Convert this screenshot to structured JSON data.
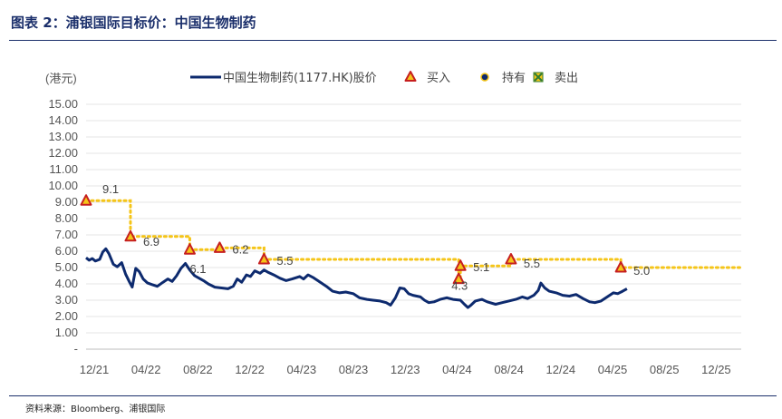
{
  "header": {
    "title": "图表 2：浦银国际目标价：中国生物制药",
    "source": "资料来源：Bloomberg、浦银国际"
  },
  "colors": {
    "price_line": "#0d2a6e",
    "target_line": "#f5c518",
    "buy_marker": "#c61f1f",
    "buy_marker_fill": "#f5c518",
    "hold_marker": "#0d2a6e",
    "sell_marker": "#2e7d32",
    "title": "#1b2f6b"
  },
  "chart_data": {
    "type": "line",
    "ylabel": "(港元)",
    "ylim": [
      0,
      15
    ],
    "y_ticks": [
      "-",
      "1.00",
      "2.00",
      "3.00",
      "4.00",
      "5.00",
      "6.00",
      "7.00",
      "8.00",
      "9.00",
      "10.00",
      "11.00",
      "12.00",
      "13.00",
      "14.00",
      "15.00"
    ],
    "x_ticks": [
      "12/21",
      "04/22",
      "08/22",
      "12/22",
      "04/23",
      "08/23",
      "12/23",
      "04/24",
      "08/24",
      "12/24",
      "04/25",
      "08/25",
      "12/25"
    ],
    "xlim": [
      "2021-12-01",
      "2025-12-31"
    ],
    "grid": true,
    "legend": {
      "position": "top",
      "entries": [
        {
          "label": "中国生物制药(1177.HK)股价",
          "icon": "line"
        },
        {
          "label": "买入",
          "icon": "triangle"
        },
        {
          "label": "持有",
          "icon": "circle"
        },
        {
          "label": "卖出",
          "icon": "x-square"
        }
      ]
    },
    "series": [
      {
        "name": "中国生物制药(1177.HK)股价",
        "points": [
          [
            "2021-12-01",
            5.6
          ],
          [
            "2021-12-08",
            5.45
          ],
          [
            "2021-12-15",
            5.55
          ],
          [
            "2021-12-22",
            5.4
          ],
          [
            "2022-01-01",
            5.5
          ],
          [
            "2022-01-08",
            5.95
          ],
          [
            "2022-01-15",
            6.15
          ],
          [
            "2022-01-22",
            5.85
          ],
          [
            "2022-02-01",
            5.2
          ],
          [
            "2022-02-10",
            5.05
          ],
          [
            "2022-02-20",
            5.3
          ],
          [
            "2022-03-01",
            4.6
          ],
          [
            "2022-03-10",
            4.1
          ],
          [
            "2022-03-16",
            3.8
          ],
          [
            "2022-03-24",
            4.95
          ],
          [
            "2022-04-01",
            4.75
          ],
          [
            "2022-04-10",
            4.3
          ],
          [
            "2022-04-20",
            4.05
          ],
          [
            "2022-05-01",
            3.95
          ],
          [
            "2022-05-12",
            3.85
          ],
          [
            "2022-05-25",
            4.1
          ],
          [
            "2022-06-05",
            4.3
          ],
          [
            "2022-06-15",
            4.15
          ],
          [
            "2022-06-25",
            4.5
          ],
          [
            "2022-07-05",
            4.95
          ],
          [
            "2022-07-15",
            5.25
          ],
          [
            "2022-07-25",
            4.85
          ],
          [
            "2022-08-05",
            4.5
          ],
          [
            "2022-08-15",
            4.35
          ],
          [
            "2022-08-25",
            4.2
          ],
          [
            "2022-09-05",
            4.0
          ],
          [
            "2022-09-20",
            3.8
          ],
          [
            "2022-10-05",
            3.75
          ],
          [
            "2022-10-20",
            3.7
          ],
          [
            "2022-11-01",
            3.85
          ],
          [
            "2022-11-10",
            4.3
          ],
          [
            "2022-11-20",
            4.1
          ],
          [
            "2022-12-01",
            4.55
          ],
          [
            "2022-12-10",
            4.45
          ],
          [
            "2022-12-20",
            4.8
          ],
          [
            "2023-01-01",
            4.65
          ],
          [
            "2023-01-10",
            4.85
          ],
          [
            "2023-01-20",
            4.7
          ],
          [
            "2023-02-01",
            4.55
          ],
          [
            "2023-02-15",
            4.35
          ],
          [
            "2023-03-01",
            4.2
          ],
          [
            "2023-03-15",
            4.3
          ],
          [
            "2023-04-01",
            4.45
          ],
          [
            "2023-04-10",
            4.3
          ],
          [
            "2023-04-20",
            4.55
          ],
          [
            "2023-05-01",
            4.4
          ],
          [
            "2023-05-15",
            4.15
          ],
          [
            "2023-06-01",
            3.85
          ],
          [
            "2023-06-15",
            3.55
          ],
          [
            "2023-07-01",
            3.45
          ],
          [
            "2023-07-15",
            3.5
          ],
          [
            "2023-08-01",
            3.4
          ],
          [
            "2023-08-15",
            3.15
          ],
          [
            "2023-09-01",
            3.05
          ],
          [
            "2023-09-15",
            3.0
          ],
          [
            "2023-10-01",
            2.95
          ],
          [
            "2023-10-15",
            2.85
          ],
          [
            "2023-10-25",
            2.7
          ],
          [
            "2023-11-05",
            3.15
          ],
          [
            "2023-11-15",
            3.75
          ],
          [
            "2023-11-25",
            3.7
          ],
          [
            "2023-12-05",
            3.4
          ],
          [
            "2023-12-15",
            3.3
          ],
          [
            "2024-01-01",
            3.2
          ],
          [
            "2024-01-10",
            3.0
          ],
          [
            "2024-01-20",
            2.85
          ],
          [
            "2024-02-01",
            2.9
          ],
          [
            "2024-02-15",
            3.05
          ],
          [
            "2024-03-01",
            3.15
          ],
          [
            "2024-03-15",
            3.05
          ],
          [
            "2024-04-01",
            3.0
          ],
          [
            "2024-04-10",
            2.75
          ],
          [
            "2024-04-18",
            2.55
          ],
          [
            "2024-04-25",
            2.7
          ],
          [
            "2024-05-05",
            2.95
          ],
          [
            "2024-05-20",
            3.05
          ],
          [
            "2024-06-01",
            2.9
          ],
          [
            "2024-06-20",
            2.75
          ],
          [
            "2024-07-05",
            2.85
          ],
          [
            "2024-07-20",
            2.95
          ],
          [
            "2024-08-05",
            3.05
          ],
          [
            "2024-08-20",
            3.2
          ],
          [
            "2024-09-01",
            3.1
          ],
          [
            "2024-09-15",
            3.3
          ],
          [
            "2024-09-25",
            3.6
          ],
          [
            "2024-10-01",
            4.05
          ],
          [
            "2024-10-10",
            3.75
          ],
          [
            "2024-10-20",
            3.55
          ],
          [
            "2024-11-05",
            3.45
          ],
          [
            "2024-11-20",
            3.3
          ],
          [
            "2024-12-05",
            3.25
          ],
          [
            "2024-12-20",
            3.35
          ],
          [
            "2025-01-05",
            3.1
          ],
          [
            "2025-01-20",
            2.9
          ],
          [
            "2025-02-01",
            2.85
          ],
          [
            "2025-02-15",
            2.95
          ],
          [
            "2025-03-01",
            3.2
          ],
          [
            "2025-03-15",
            3.45
          ],
          [
            "2025-03-25",
            3.4
          ],
          [
            "2025-04-05",
            3.55
          ],
          [
            "2025-04-15",
            3.7
          ]
        ]
      },
      {
        "name": "目标价",
        "step": true,
        "points": [
          [
            "2021-12-01",
            9.1
          ],
          [
            "2022-03-12",
            6.9
          ],
          [
            "2022-07-25",
            6.1
          ],
          [
            "2022-10-01",
            6.2
          ],
          [
            "2023-01-10",
            5.5
          ],
          [
            "2024-03-28",
            4.3
          ],
          [
            "2024-04-01",
            5.1
          ],
          [
            "2024-07-25",
            5.5
          ],
          [
            "2025-04-01",
            5.0
          ],
          [
            "2025-12-31",
            5.0
          ]
        ]
      }
    ],
    "ratings": [
      {
        "date": "2021-12-01",
        "price": 9.1,
        "rating": "买入",
        "label": "9.1"
      },
      {
        "date": "2022-03-12",
        "price": 6.9,
        "rating": "买入",
        "label": "6.9"
      },
      {
        "date": "2022-07-25",
        "price": 6.1,
        "rating": "买入",
        "label": "6.1"
      },
      {
        "date": "2022-10-01",
        "price": 6.2,
        "rating": "买入",
        "label": "6.2"
      },
      {
        "date": "2023-01-10",
        "price": 5.5,
        "rating": "买入",
        "label": "5.5"
      },
      {
        "date": "2024-03-28",
        "price": 4.3,
        "rating": "买入",
        "label": "4.3"
      },
      {
        "date": "2024-04-01",
        "price": 5.1,
        "rating": "买入",
        "label": "5.1"
      },
      {
        "date": "2024-07-25",
        "price": 5.5,
        "rating": "买入",
        "label": "5.5"
      },
      {
        "date": "2025-04-01",
        "price": 5.0,
        "rating": "买入",
        "label": "5.0"
      }
    ]
  }
}
